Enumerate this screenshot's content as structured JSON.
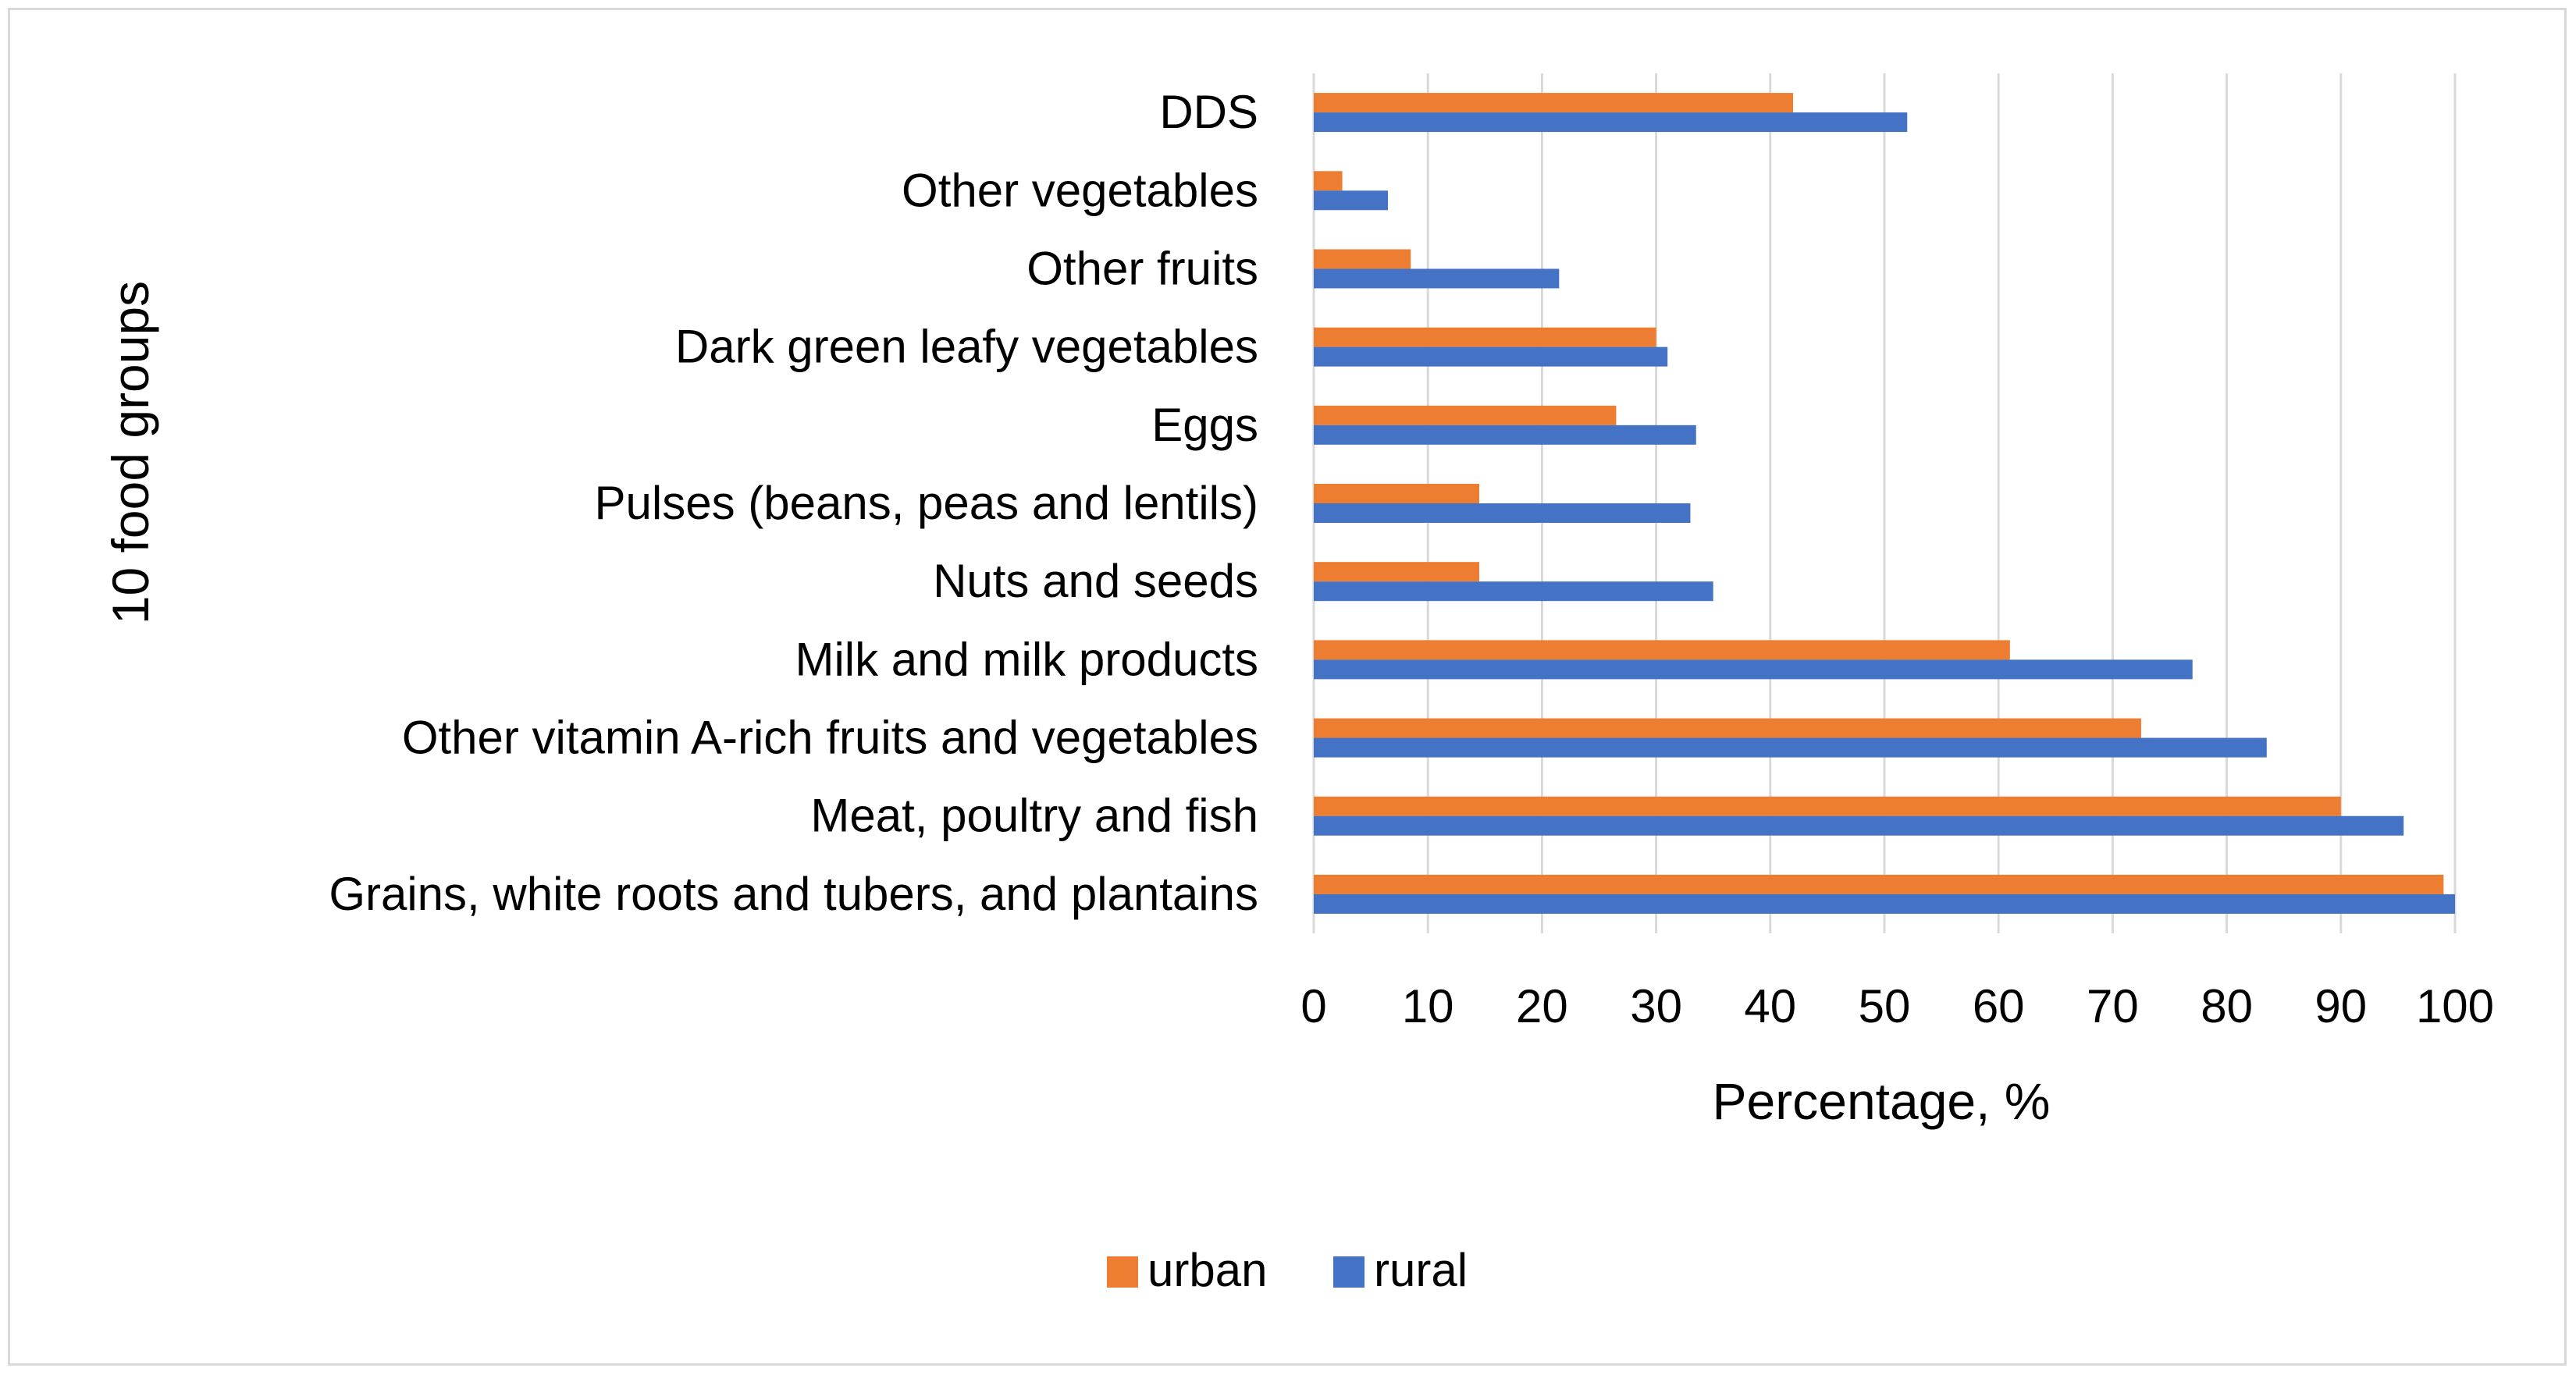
{
  "chart_data": {
    "type": "bar",
    "orientation": "horizontal",
    "title": "",
    "xlabel": "Percentage, %",
    "ylabel": "10 food groups",
    "xlim": [
      0,
      100
    ],
    "x_ticks": [
      "0",
      "10",
      "20",
      "30",
      "40",
      "50",
      "60",
      "70",
      "80",
      "90",
      "100"
    ],
    "grid": true,
    "legend_position": "bottom",
    "categories": [
      "DDS",
      "Other vegetables",
      "Other fruits",
      "Dark green leafy vegetables",
      "Eggs",
      "Pulses (beans, peas and lentils)",
      "Nuts and seeds",
      "Milk and milk products",
      "Other vitamin A-rich fruits and vegetables",
      "Meat, poultry and fish",
      "Grains, white roots and tubers, and plantains"
    ],
    "series": [
      {
        "name": "urban",
        "color": "#ed7d31",
        "values": [
          42,
          2.5,
          8.5,
          30,
          26.5,
          14.5,
          14.5,
          61,
          72.5,
          90,
          99
        ]
      },
      {
        "name": "rural",
        "color": "#4472c4",
        "values": [
          52,
          6.5,
          21.5,
          31,
          33.5,
          33,
          35,
          77,
          83.5,
          95.5,
          100
        ]
      }
    ]
  }
}
